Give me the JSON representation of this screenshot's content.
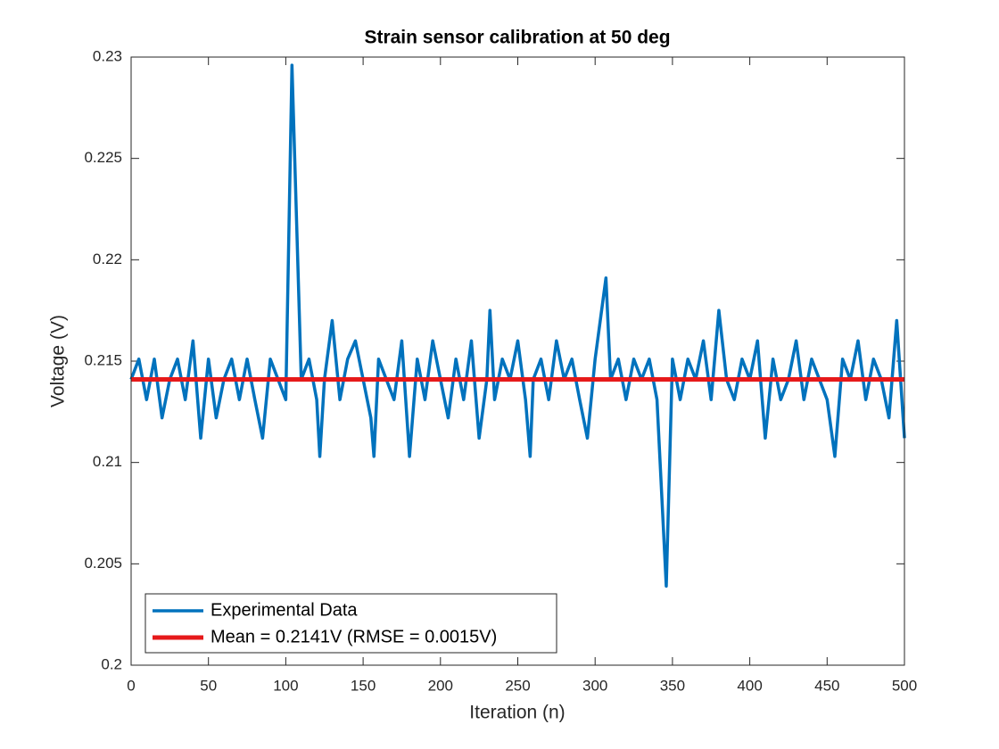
{
  "chart_data": {
    "type": "line",
    "title": "Strain sensor calibration at 50 deg",
    "x_label": "Iteration (n)",
    "y_label": "Voltage (V)",
    "xlim": [
      0,
      500
    ],
    "xticks": [
      0,
      50,
      100,
      150,
      200,
      250,
      300,
      350,
      400,
      450,
      500
    ],
    "ylim": [
      0.2,
      0.23
    ],
    "yticks": [
      0.2,
      0.205,
      0.21,
      0.215,
      0.22,
      0.225,
      0.23
    ],
    "legend": "lower left",
    "series": [
      {
        "name": "Experimental Data",
        "color": "#0072bd",
        "x": [
          0,
          5,
          10,
          15,
          20,
          25,
          30,
          35,
          40,
          45,
          50,
          55,
          60,
          65,
          70,
          75,
          80,
          85,
          90,
          95,
          100,
          104,
          110,
          115,
          120,
          122,
          125,
          130,
          135,
          140,
          145,
          150,
          155,
          157,
          160,
          165,
          170,
          175,
          180,
          185,
          190,
          195,
          200,
          205,
          210,
          215,
          220,
          225,
          230,
          232,
          235,
          240,
          245,
          250,
          255,
          258,
          260,
          265,
          270,
          275,
          280,
          285,
          290,
          295,
          300,
          307,
          310,
          315,
          320,
          325,
          330,
          335,
          340,
          346,
          350,
          355,
          360,
          365,
          370,
          375,
          380,
          385,
          390,
          395,
          400,
          405,
          410,
          415,
          420,
          425,
          430,
          435,
          440,
          445,
          450,
          455,
          460,
          465,
          470,
          475,
          480,
          485,
          490,
          495,
          500
        ],
        "values": [
          0.2141,
          0.2151,
          0.2131,
          0.2151,
          0.2122,
          0.2141,
          0.2151,
          0.2131,
          0.216,
          0.2112,
          0.2151,
          0.2122,
          0.2141,
          0.2151,
          0.2131,
          0.2151,
          0.2131,
          0.2112,
          0.2151,
          0.2141,
          0.2131,
          0.2296,
          0.2141,
          0.2151,
          0.2131,
          0.2103,
          0.2141,
          0.217,
          0.2131,
          0.2151,
          0.216,
          0.2141,
          0.2122,
          0.2103,
          0.2151,
          0.2141,
          0.2131,
          0.216,
          0.2103,
          0.2151,
          0.2131,
          0.216,
          0.2141,
          0.2122,
          0.2151,
          0.2131,
          0.216,
          0.2112,
          0.2141,
          0.2175,
          0.2131,
          0.2151,
          0.2141,
          0.216,
          0.2131,
          0.2103,
          0.2141,
          0.2151,
          0.2131,
          0.216,
          0.2141,
          0.2151,
          0.2131,
          0.2112,
          0.2151,
          0.2191,
          0.2141,
          0.2151,
          0.2131,
          0.2151,
          0.2141,
          0.2151,
          0.2131,
          0.2039,
          0.2151,
          0.2131,
          0.2151,
          0.2141,
          0.216,
          0.2131,
          0.2175,
          0.2141,
          0.2131,
          0.2151,
          0.2141,
          0.216,
          0.2112,
          0.2151,
          0.2131,
          0.2141,
          0.216,
          0.2131,
          0.2151,
          0.2141,
          0.2131,
          0.2103,
          0.2151,
          0.2141,
          0.216,
          0.2131,
          0.2151,
          0.2141,
          0.2122,
          0.217,
          0.2112
        ]
      },
      {
        "name": "Mean = 0.2141V (RMSE = 0.0015V)",
        "color": "#e6191a",
        "x": [
          0,
          500
        ],
        "values": [
          0.2141,
          0.2141
        ]
      }
    ]
  }
}
